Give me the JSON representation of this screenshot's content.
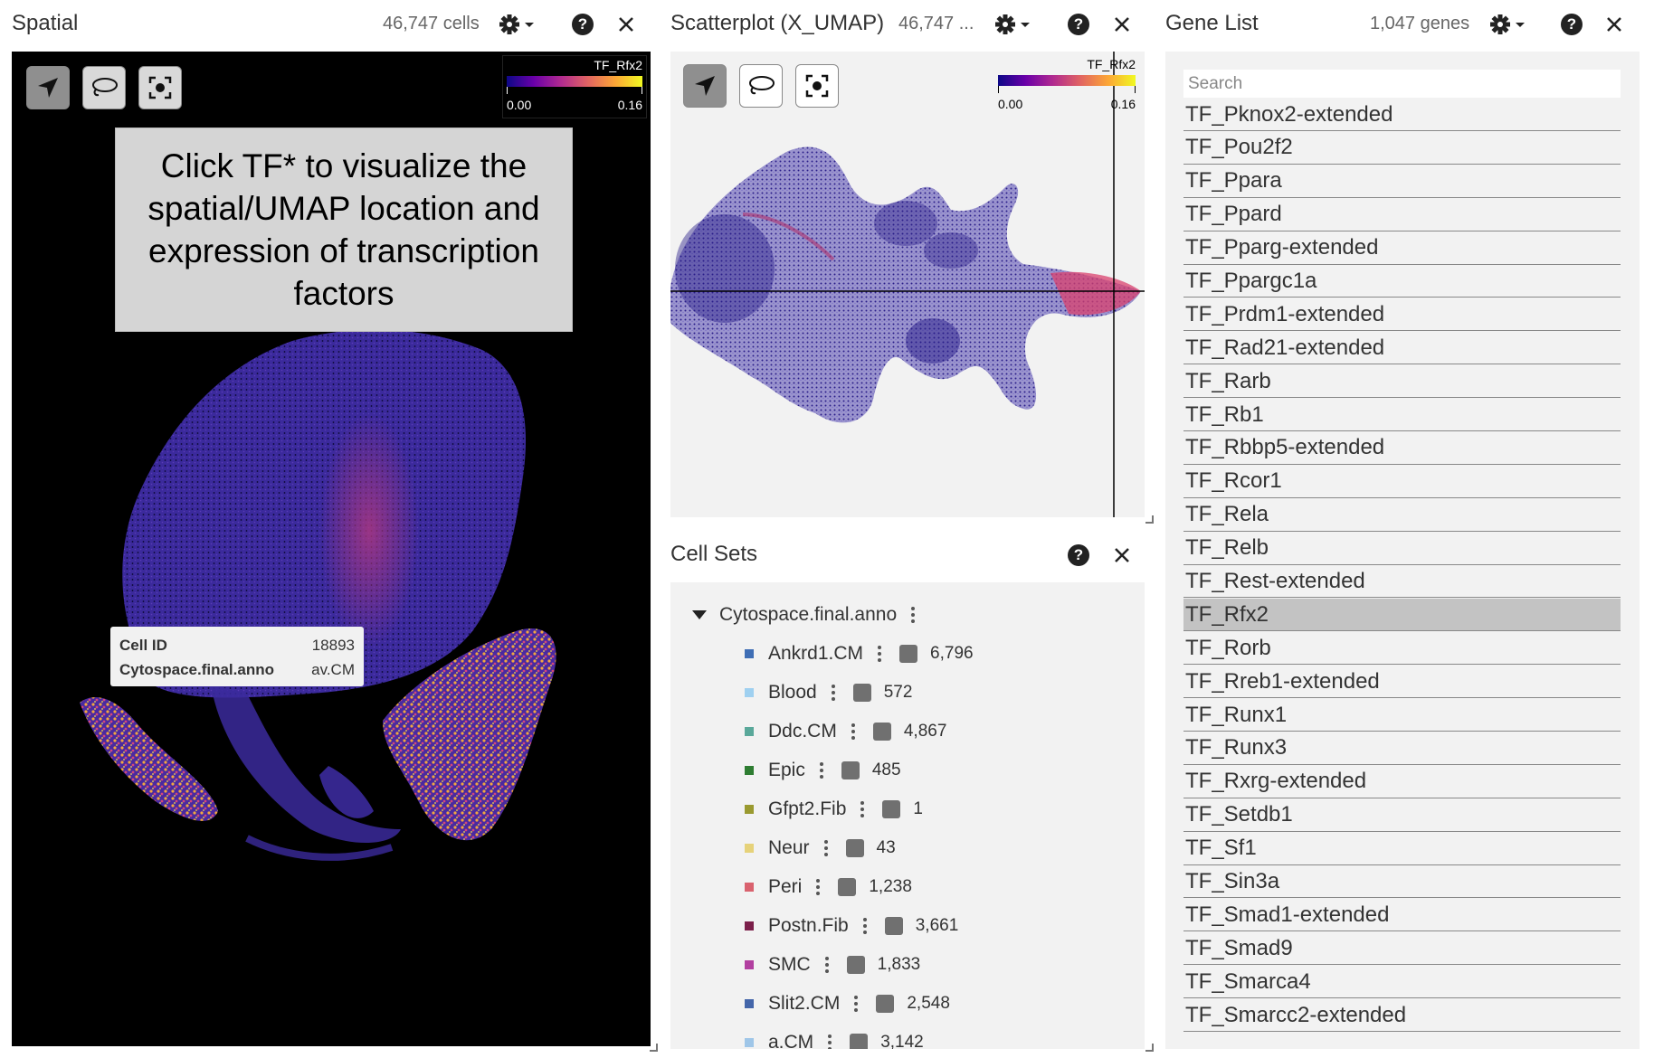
{
  "spatial": {
    "title": "Spatial",
    "count": "46,747 cells",
    "legend": {
      "title": "TF_Rfx2",
      "min": "0.00",
      "max": "0.16"
    },
    "annotation": "Click TF* to visualize the spatial/UMAP location and expression of transcription factors",
    "tooltip": {
      "rows": [
        {
          "key": "Cell ID",
          "value": "18893"
        },
        {
          "key": "Cytospace.final.anno",
          "value": "av.CM"
        }
      ]
    }
  },
  "scatter": {
    "title": "Scatterplot (X_UMAP)",
    "count": "46,747 ...",
    "legend": {
      "title": "TF_Rfx2",
      "min": "0.00",
      "max": "0.16"
    }
  },
  "cellsets": {
    "title": "Cell Sets",
    "root_label": "Cytospace.final.anno",
    "items": [
      {
        "label": "Ankrd1.CM",
        "count": "6,796",
        "color": "#3f6eb5"
      },
      {
        "label": "Blood",
        "count": "572",
        "color": "#9fd0f0"
      },
      {
        "label": "Ddc.CM",
        "count": "4,867",
        "color": "#5aa89a"
      },
      {
        "label": "Epic",
        "count": "485",
        "color": "#2e7d32"
      },
      {
        "label": "Gfpt2.Fib",
        "count": "1",
        "color": "#9a9a30"
      },
      {
        "label": "Neur",
        "count": "43",
        "color": "#e6d27a"
      },
      {
        "label": "Peri",
        "count": "1,238",
        "color": "#d9626e"
      },
      {
        "label": "Postn.Fib",
        "count": "3,661",
        "color": "#7b1f4a"
      },
      {
        "label": "SMC",
        "count": "1,833",
        "color": "#b23fa0"
      },
      {
        "label": "Slit2.CM",
        "count": "2,548",
        "color": "#4466aa"
      },
      {
        "label": "a.CM",
        "count": "3,142",
        "color": "#9fc6e8"
      }
    ]
  },
  "genelist": {
    "title": "Gene List",
    "count": "1,047 genes",
    "search_placeholder": "Search",
    "selected_gene": "TF_Rfx2",
    "genes": [
      "TF_Pknox2-extended",
      "TF_Pou2f2",
      "TF_Ppara",
      "TF_Ppard",
      "TF_Pparg-extended",
      "TF_Ppargc1a",
      "TF_Prdm1-extended",
      "TF_Rad21-extended",
      "TF_Rarb",
      "TF_Rb1",
      "TF_Rbbp5-extended",
      "TF_Rcor1",
      "TF_Rela",
      "TF_Relb",
      "TF_Rest-extended",
      "TF_Rfx2",
      "TF_Rorb",
      "TF_Rreb1-extended",
      "TF_Runx1",
      "TF_Runx3",
      "TF_Rxrg-extended",
      "TF_Setdb1",
      "TF_Sf1",
      "TF_Sin3a",
      "TF_Smad1-extended",
      "TF_Smad9",
      "TF_Smarca4",
      "TF_Smarcc2-extended"
    ]
  }
}
